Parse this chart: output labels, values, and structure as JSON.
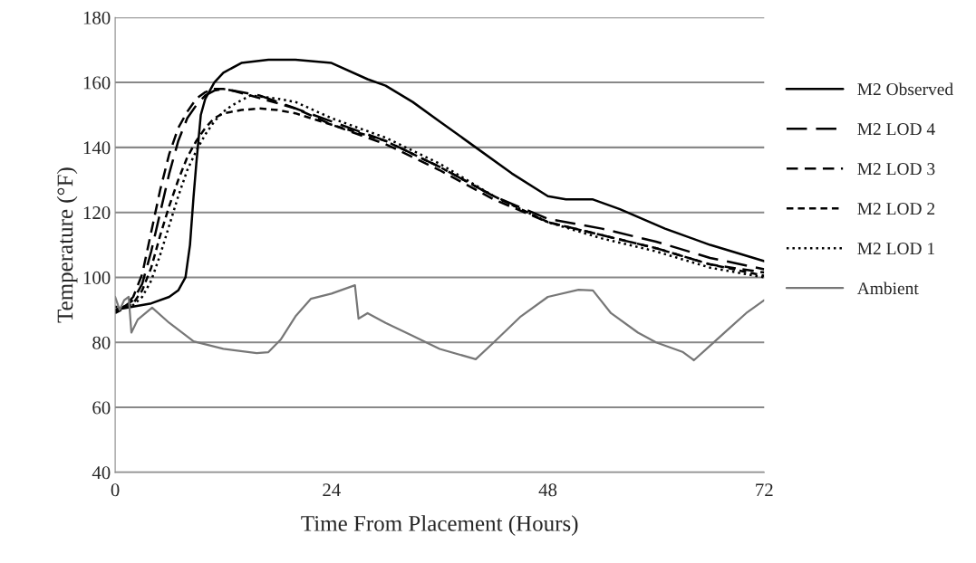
{
  "chart_data": {
    "type": "line",
    "xlabel": "Time From Placement (Hours)",
    "ylabel": "Temperature (°F)",
    "xlim": [
      0,
      72
    ],
    "xticks": [
      0,
      24,
      48,
      72
    ],
    "ylim": [
      40,
      180
    ],
    "yticks": [
      40,
      60,
      80,
      100,
      120,
      140,
      160,
      180
    ],
    "grid": "y",
    "legend": "right",
    "marker": "none",
    "series": [
      {
        "name": "M2 Observed",
        "color": "#000000",
        "line_style": "solid",
        "x": [
          0,
          2,
          4,
          6,
          7,
          7.8,
          8.3,
          8.7,
          9,
          9.5,
          10,
          11,
          12,
          14,
          17,
          20,
          24,
          28,
          30,
          33,
          36,
          40,
          44,
          48,
          50,
          53,
          56,
          61,
          66,
          72
        ],
        "values": [
          90,
          91,
          92,
          94,
          96,
          100,
          110,
          125,
          135,
          150,
          155,
          160,
          163,
          166,
          167,
          167,
          166,
          161,
          159,
          154,
          148,
          140,
          132,
          125,
          124,
          124,
          121,
          115,
          110,
          105
        ]
      },
      {
        "name": "M2 LOD 4",
        "color": "#000000",
        "line_style": "dashed",
        "x": [
          0,
          1,
          2,
          3,
          4,
          5,
          6,
          7,
          8,
          9,
          10,
          11,
          12,
          14,
          16,
          20,
          24,
          30,
          36,
          42,
          48,
          54,
          60,
          66,
          72
        ],
        "values": [
          90,
          91,
          93,
          98,
          108,
          120,
          132,
          142,
          149,
          153,
          156,
          157.5,
          158,
          157,
          156,
          152,
          148,
          142,
          134,
          125,
          118,
          115,
          111,
          106,
          102.5
        ]
      },
      {
        "name": "M2 LOD 3",
        "color": "#000000",
        "line_style": "dashed",
        "x": [
          0,
          1,
          2,
          3,
          4,
          5,
          6,
          7,
          8,
          9,
          10,
          11,
          12,
          13,
          15,
          20,
          24,
          30,
          36,
          42,
          48,
          54,
          60,
          66,
          72
        ],
        "values": [
          89.5,
          91,
          94,
          101,
          114,
          127,
          138,
          146,
          151,
          155,
          157,
          158,
          158,
          157.5,
          156,
          152,
          147,
          141,
          133,
          124,
          117,
          113,
          109,
          104,
          101.5
        ]
      },
      {
        "name": "M2 LOD 2",
        "color": "#000000",
        "line_style": "dashed",
        "x": [
          0,
          1,
          2,
          3,
          4,
          5,
          6,
          7,
          8,
          9,
          10,
          11,
          12,
          14,
          16,
          18,
          20,
          24,
          30,
          36,
          42,
          48,
          54,
          60,
          66,
          72
        ],
        "values": [
          89,
          90.5,
          92,
          96,
          103,
          113,
          122,
          130,
          137,
          142,
          146,
          149,
          150.5,
          151.5,
          152,
          151.5,
          150.5,
          147,
          142,
          134,
          125,
          117,
          113,
          109,
          104,
          100.5
        ]
      },
      {
        "name": "M2 LOD 1",
        "color": "#000000",
        "line_style": "dotted",
        "x": [
          0,
          1,
          2,
          3,
          4,
          5,
          6,
          7,
          8,
          9,
          10,
          11,
          12,
          13,
          15,
          18,
          20,
          24,
          30,
          36,
          42,
          48,
          54,
          60,
          66,
          72
        ],
        "values": [
          91,
          90.5,
          91.5,
          94,
          99,
          107,
          116,
          125,
          133,
          139,
          144,
          148,
          151,
          153,
          156,
          155,
          154,
          149,
          143,
          135,
          125,
          117,
          112,
          108,
          103,
          100
        ]
      },
      {
        "name": "Ambient",
        "color": "#777777",
        "line_style": "solid",
        "x": [
          0,
          0.5,
          1,
          1.5,
          1.8,
          2.5,
          4.1,
          6,
          8.7,
          12,
          15.7,
          17,
          18.4,
          20,
          21.7,
          24,
          26.6,
          27,
          28,
          30,
          33,
          36,
          40,
          42,
          45,
          48,
          51.4,
          53,
          55,
          58,
          60,
          63,
          64.2,
          66,
          68,
          70,
          72
        ],
        "values": [
          94,
          90,
          93,
          94,
          83,
          87,
          90.7,
          86,
          80.3,
          78,
          76.7,
          77,
          81,
          88,
          93.4,
          95,
          97.6,
          87.3,
          89,
          86,
          82,
          78,
          74.8,
          80,
          88,
          94,
          96.2,
          96,
          89,
          83,
          80,
          77,
          74.5,
          79,
          84,
          89,
          93
        ]
      }
    ]
  }
}
